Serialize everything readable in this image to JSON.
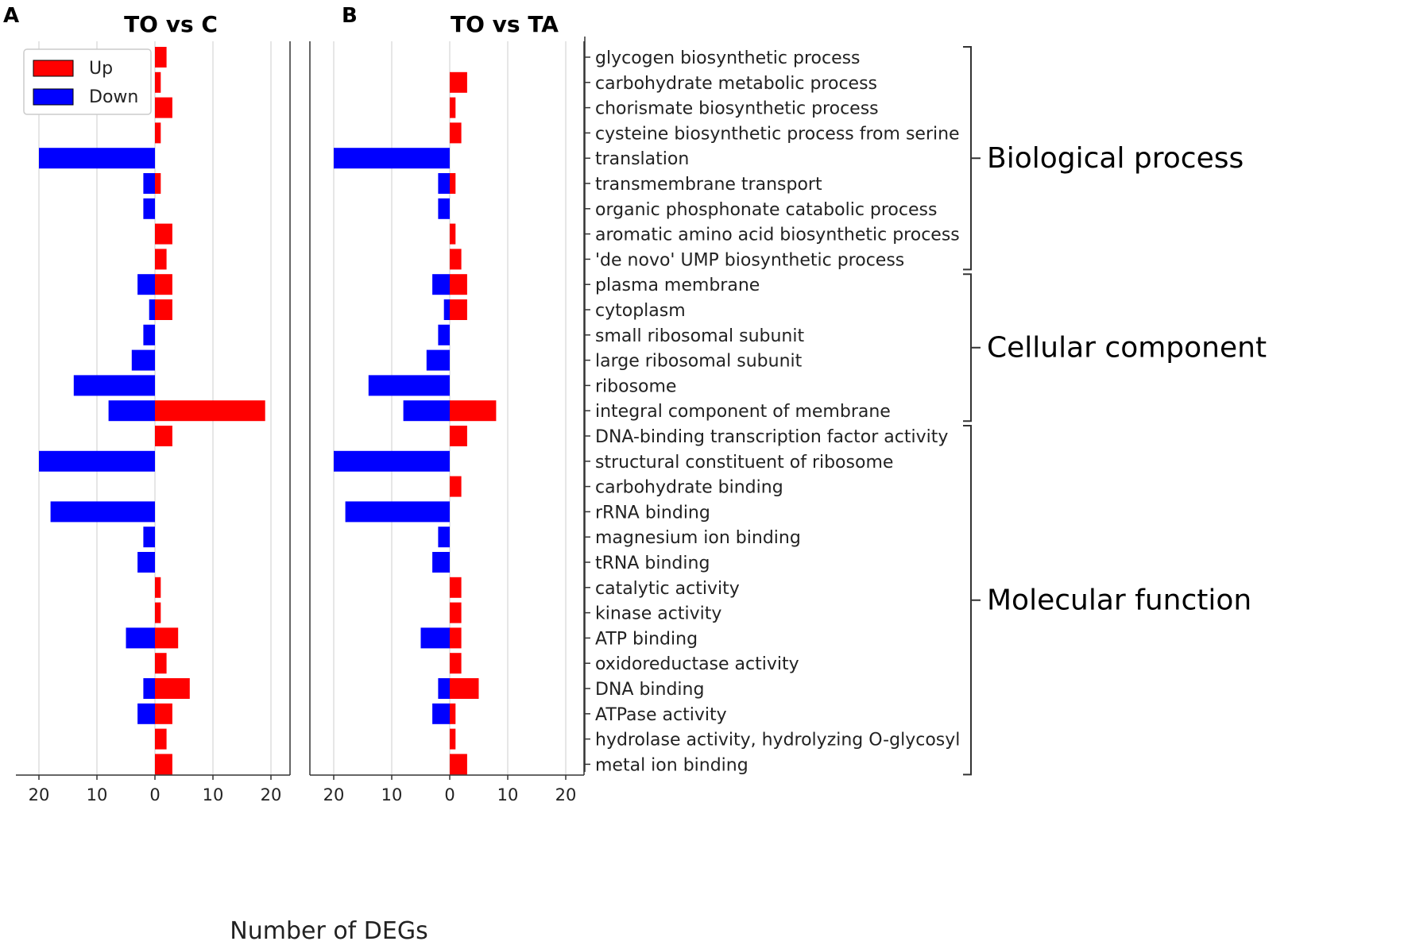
{
  "panels": [
    {
      "letter": "A",
      "title": "TO vs C"
    },
    {
      "letter": "B",
      "title": "TO vs TA"
    }
  ],
  "xlabel": "Number of DEGs",
  "legend": [
    {
      "label": "Up",
      "color": "#ff0000"
    },
    {
      "label": "Down",
      "color": "#0000ff"
    }
  ],
  "groups": [
    {
      "label": "Biological process",
      "first": 0,
      "last": 8
    },
    {
      "label": "Cellular component",
      "first": 9,
      "last": 14
    },
    {
      "label": "Molecular function",
      "first": 15,
      "last": 28
    }
  ],
  "chart_data": [
    {
      "type": "bar",
      "orientation": "horizontal",
      "title": "TO vs C",
      "xlabel": "Number of DEGs",
      "xlim": [
        -23,
        23
      ],
      "xticks": [
        -20,
        -10,
        0,
        10,
        20
      ],
      "xtick_labels": [
        "20",
        "10",
        "0",
        "10",
        "20"
      ],
      "grid": true,
      "legend_position": "top-left",
      "categories": [
        "glycogen biosynthetic process",
        "carbohydrate metabolic process",
        "chorismate biosynthetic process",
        "cysteine biosynthetic process from serine",
        "translation",
        "transmembrane transport",
        "organic phosphonate catabolic process",
        "aromatic amino acid biosynthetic process",
        "'de novo' UMP biosynthetic process",
        "plasma membrane",
        "cytoplasm",
        "small ribosomal subunit",
        "large ribosomal subunit",
        "ribosome",
        "integral component of membrane",
        "DNA-binding transcription factor activity",
        "structural constituent of ribosome",
        "carbohydrate binding",
        "rRNA binding",
        "magnesium ion binding",
        "tRNA binding",
        "catalytic activity",
        "kinase activity",
        "ATP binding",
        "oxidoreductase activity",
        "DNA binding",
        "ATPase activity",
        "hydrolase activity, hydrolyzing O-glycosyl",
        "metal ion binding"
      ],
      "series": [
        {
          "name": "Up",
          "values": [
            2,
            1,
            3,
            1,
            0,
            1,
            0,
            3,
            2,
            3,
            3,
            0,
            0,
            0,
            19,
            3,
            0,
            0,
            0,
            0,
            0,
            1,
            1,
            4,
            2,
            6,
            3,
            2,
            3
          ]
        },
        {
          "name": "Down",
          "values": [
            0,
            0,
            0,
            0,
            20,
            2,
            2,
            0,
            0,
            3,
            1,
            2,
            4,
            14,
            8,
            0,
            20,
            0,
            18,
            2,
            3,
            0,
            0,
            5,
            0,
            2,
            3,
            0,
            0
          ]
        }
      ]
    },
    {
      "type": "bar",
      "orientation": "horizontal",
      "title": "TO vs TA",
      "xlabel": "Number of DEGs",
      "xlim": [
        -23,
        23
      ],
      "xticks": [
        -20,
        -10,
        0,
        10,
        20
      ],
      "xtick_labels": [
        "20",
        "10",
        "0",
        "10",
        "20"
      ],
      "grid": true,
      "categories": [
        "glycogen biosynthetic process",
        "carbohydrate metabolic process",
        "chorismate biosynthetic process",
        "cysteine biosynthetic process from serine",
        "translation",
        "transmembrane transport",
        "organic phosphonate catabolic process",
        "aromatic amino acid biosynthetic process",
        "'de novo' UMP biosynthetic process",
        "plasma membrane",
        "cytoplasm",
        "small ribosomal subunit",
        "large ribosomal subunit",
        "ribosome",
        "integral component of membrane",
        "DNA-binding transcription factor activity",
        "structural constituent of ribosome",
        "carbohydrate binding",
        "rRNA binding",
        "magnesium ion binding",
        "tRNA binding",
        "catalytic activity",
        "kinase activity",
        "ATP binding",
        "oxidoreductase activity",
        "DNA binding",
        "ATPase activity",
        "hydrolase activity, hydrolyzing O-glycosyl",
        "metal ion binding"
      ],
      "series": [
        {
          "name": "Up",
          "values": [
            0,
            3,
            1,
            2,
            0,
            1,
            0,
            1,
            2,
            3,
            3,
            0,
            0,
            0,
            8,
            3,
            0,
            2,
            0,
            0,
            0,
            2,
            2,
            2,
            2,
            5,
            1,
            1,
            3
          ]
        },
        {
          "name": "Down",
          "values": [
            0,
            0,
            0,
            0,
            20,
            2,
            2,
            0,
            0,
            3,
            1,
            2,
            4,
            14,
            8,
            0,
            20,
            0,
            18,
            2,
            3,
            0,
            0,
            5,
            0,
            2,
            3,
            0,
            0
          ]
        }
      ]
    }
  ]
}
